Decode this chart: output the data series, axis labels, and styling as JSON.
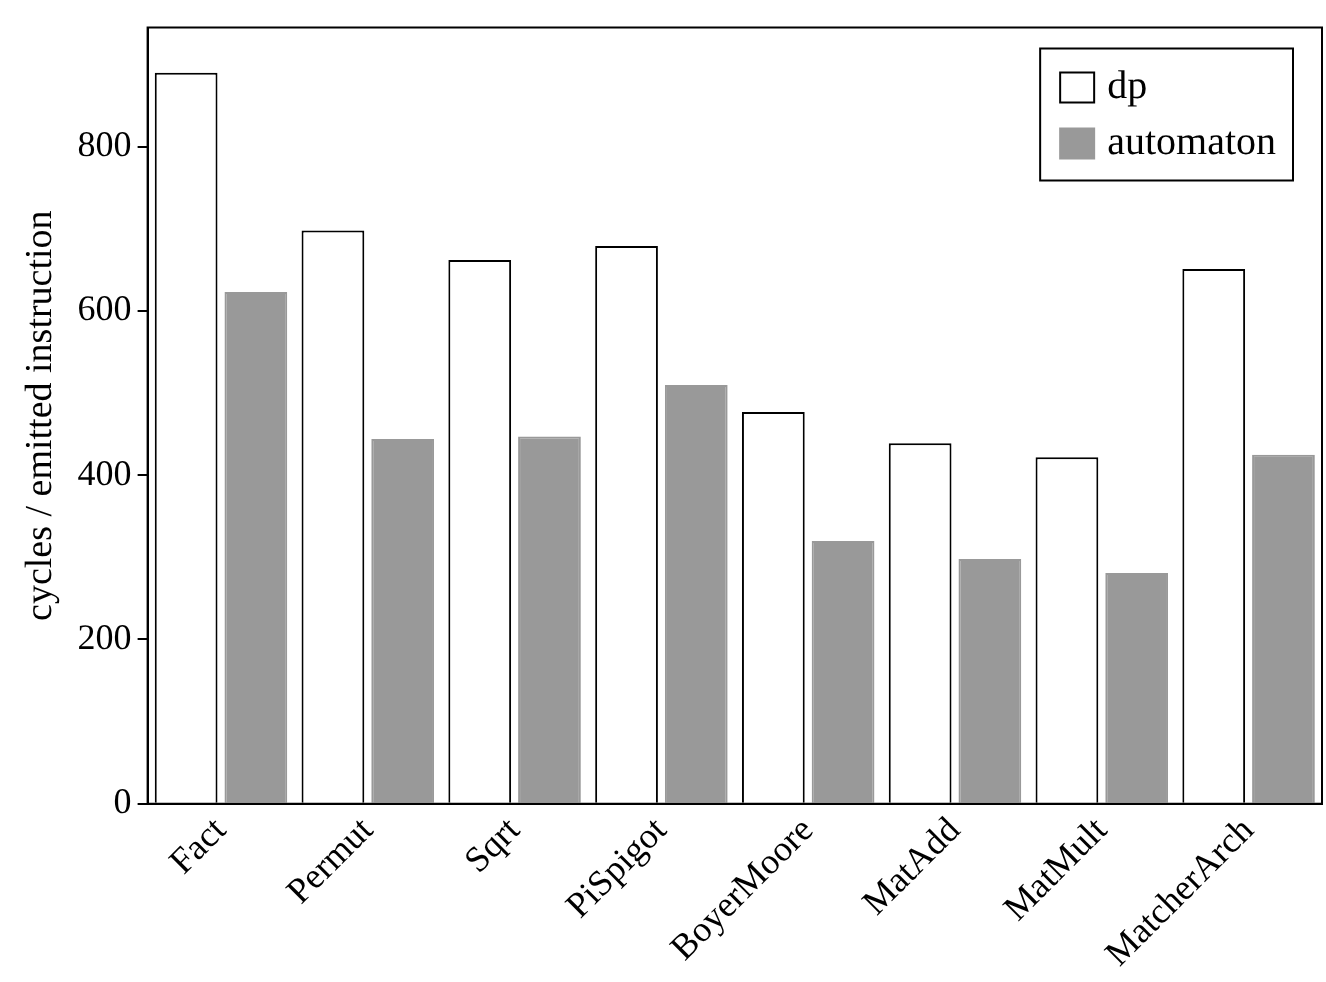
{
  "chart_data": {
    "type": "bar",
    "ylabel": "cycles / emitted instruction",
    "categories": [
      "Fact",
      "Permut",
      "Sqrt",
      "PiSpigot",
      "BoyerMoore",
      "MatAdd",
      "MatMult",
      "MatcherArch"
    ],
    "series": [
      {
        "name": "dp",
        "color": "#ffffff",
        "values": [
          890,
          698,
          662,
          679,
          477,
          439,
          422,
          651
        ]
      },
      {
        "name": "automaton",
        "color": "#999999",
        "values": [
          623,
          444,
          447,
          510,
          320,
          298,
          281,
          425
        ]
      }
    ],
    "ylim": [
      0,
      945
    ],
    "yticks": [
      0,
      200,
      400,
      600,
      800
    ],
    "grid": false,
    "legend": "top right"
  }
}
